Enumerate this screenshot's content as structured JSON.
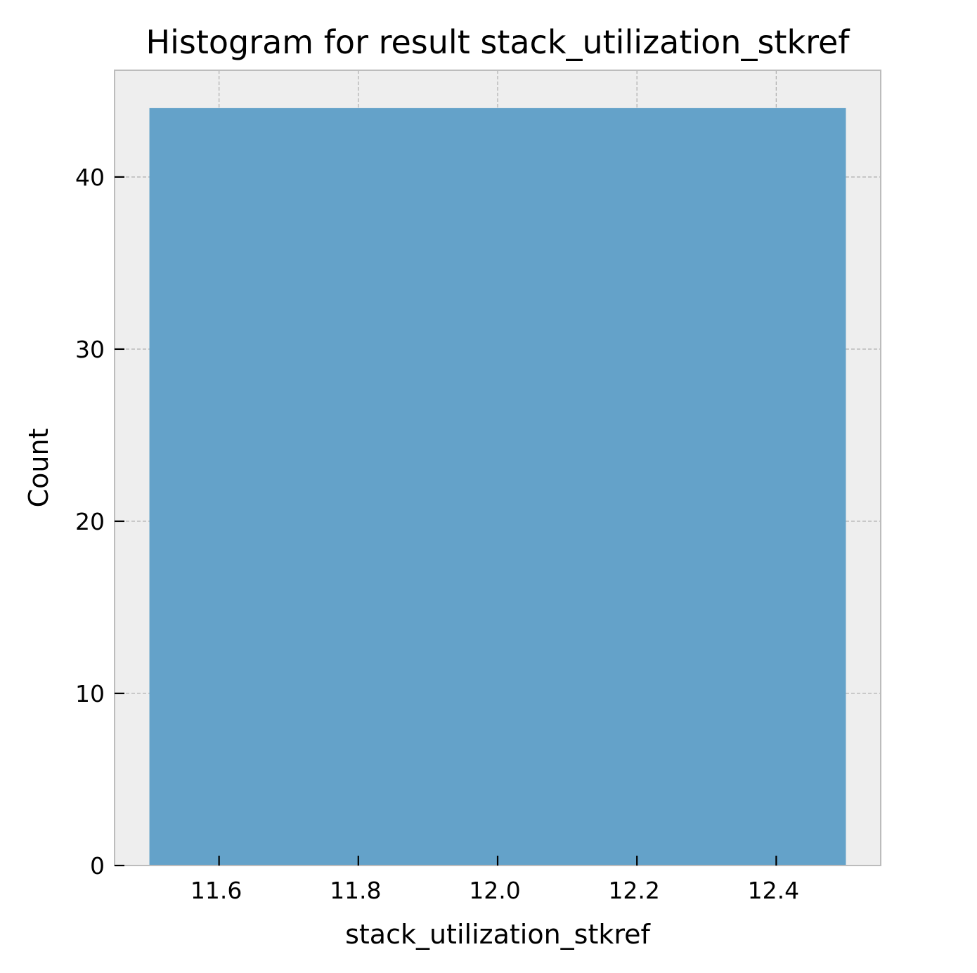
{
  "chart_data": {
    "type": "bar",
    "title": "Histogram for result stack_utilization_stkref",
    "xlabel": "stack_utilization_stkref",
    "ylabel": "Count",
    "bins": [
      {
        "x0": 11.5,
        "x1": 12.5,
        "count": 44
      }
    ],
    "xlim": [
      11.45,
      12.55
    ],
    "ylim": [
      0,
      46.2
    ],
    "xticks": [
      11.6,
      11.8,
      12.0,
      12.2,
      12.4
    ],
    "xtick_labels": [
      "11.6",
      "11.8",
      "12.0",
      "12.2",
      "12.4"
    ],
    "yticks": [
      0,
      10,
      20,
      30,
      40
    ],
    "ytick_labels": [
      "0",
      "10",
      "20",
      "30",
      "40"
    ],
    "grid": true,
    "colors": {
      "bar": "#64a2c9",
      "plot_background": "#eeeeee",
      "grid": "#b3b3b3",
      "frame": "#bcbcbc"
    }
  }
}
